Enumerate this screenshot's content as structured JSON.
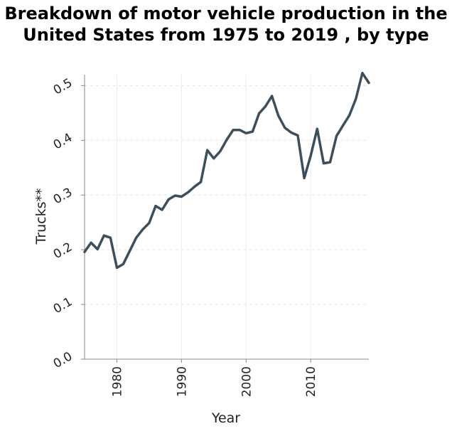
{
  "chart_data": {
    "type": "line",
    "title": "Breakdown of motor vehicle production in the United States from 1975 to 2019 , by type",
    "xlabel": "Year",
    "ylabel": "Trucks**",
    "xlim": [
      1975,
      2019
    ],
    "ylim": [
      0,
      0.52
    ],
    "x_ticks": [
      1980,
      1990,
      2000,
      2010
    ],
    "y_ticks": [
      0.0,
      0.1,
      0.2,
      0.3,
      0.4,
      0.5
    ],
    "y_tick_labels": [
      "0.0",
      "0.1",
      "0.2",
      "0.3",
      "0.4",
      "0.5"
    ],
    "grid": true,
    "line_color": "#3c4f5c",
    "series": [
      {
        "x": [
          1975,
          1976,
          1977,
          1978,
          1979,
          1980,
          1981,
          1982,
          1983,
          1984,
          1985,
          1986,
          1987,
          1988,
          1989,
          1990,
          1991,
          1992,
          1993,
          1994,
          1995,
          1996,
          1997,
          1998,
          1999,
          2000,
          2001,
          2002,
          2003,
          2004,
          2005,
          2006,
          2007,
          2008,
          2009,
          2010,
          2011,
          2012,
          2013,
          2014,
          2015,
          2016,
          2017,
          2018,
          2019
        ],
        "values": [
          0.196,
          0.213,
          0.201,
          0.226,
          0.222,
          0.167,
          0.174,
          0.198,
          0.222,
          0.237,
          0.249,
          0.28,
          0.273,
          0.292,
          0.299,
          0.297,
          0.305,
          0.315,
          0.324,
          0.382,
          0.367,
          0.38,
          0.401,
          0.419,
          0.419,
          0.413,
          0.416,
          0.449,
          0.462,
          0.481,
          0.445,
          0.423,
          0.414,
          0.409,
          0.331,
          0.372,
          0.421,
          0.358,
          0.36,
          0.408,
          0.427,
          0.446,
          0.476,
          0.523,
          0.505
        ]
      }
    ]
  }
}
